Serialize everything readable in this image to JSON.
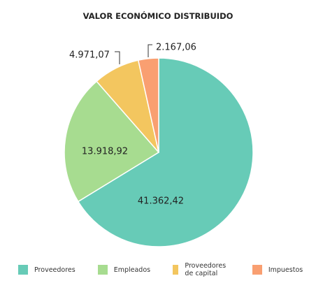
{
  "chart_data": {
    "type": "pie",
    "title": "VALOR ECONÓMICO DISTRIBUIDO",
    "categories": [
      "Proveedores",
      "Empleados",
      "Proveedores de capital",
      "Impuestos"
    ],
    "values": [
      41362.42,
      13918.92,
      4971.07,
      2167.06
    ],
    "value_labels": [
      "41.362,42",
      "13.918,92",
      "4.971,07",
      "2.167,06"
    ],
    "colors": [
      "#67cbb7",
      "#a7dc90",
      "#f3c65f",
      "#f99f71"
    ],
    "legend_position": "bottom",
    "start_angle_deg": 0,
    "direction": "clockwise"
  }
}
